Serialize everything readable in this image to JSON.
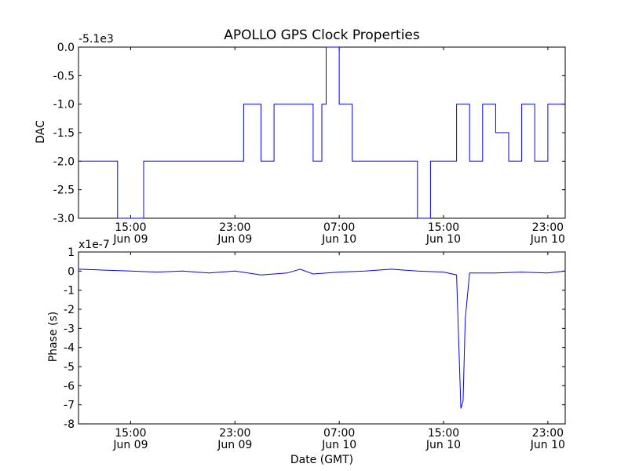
{
  "figure": {
    "title": "APOLLO GPS Clock Properties",
    "xlabel": "Date (GMT)"
  },
  "colors": {
    "line": "#0000ff",
    "axes": "#000000",
    "background": "#ffffff"
  },
  "chart_data": [
    {
      "type": "line",
      "title": "APOLLO GPS Clock Properties",
      "ylabel": "DAC",
      "offset_label": "-5.1e3",
      "y_offset": -5100,
      "ylim": [
        -3.0,
        0.0
      ],
      "yticks": [
        -3.0,
        -2.5,
        -2.0,
        -1.5,
        -1.0,
        -0.5,
        0.0
      ],
      "ytick_labels": [
        "-3.0",
        "-2.5",
        "-2.0",
        "-1.5",
        "-1.0",
        "-0.5",
        "0.0"
      ],
      "xlim": [
        "Jun 09 11:00",
        "Jun 11 00:20"
      ],
      "xticks": [
        {
          "value": "Jun 09 15:00",
          "time": "15:00",
          "date": "Jun 09"
        },
        {
          "value": "Jun 09 23:00",
          "time": "23:00",
          "date": "Jun 09"
        },
        {
          "value": "Jun 10 07:00",
          "time": "07:00",
          "date": "Jun 10"
        },
        {
          "value": "Jun 10 15:00",
          "time": "15:00",
          "date": "Jun 10"
        },
        {
          "value": "Jun 10 23:00",
          "time": "23:00",
          "date": "Jun 10"
        }
      ],
      "series": [
        {
          "x": [
            "Jun 09 11:00",
            "Jun 09 12:30",
            "Jun 09 14:00",
            "Jun 09 16:00",
            "Jun 09 18:00",
            "Jun 09 20:00",
            "Jun 09 22:00",
            "Jun 09 23:40",
            "Jun 10 00:20",
            "Jun 10 01:00",
            "Jun 10 02:00",
            "Jun 10 03:00",
            "Jun 10 04:00",
            "Jun 10 05:00",
            "Jun 10 05:40",
            "Jun 10 06:00",
            "Jun 10 07:00",
            "Jun 10 08:00",
            "Jun 10 09:00",
            "Jun 10 10:00",
            "Jun 10 11:00",
            "Jun 10 12:00",
            "Jun 10 13:00",
            "Jun 10 14:00",
            "Jun 10 15:00",
            "Jun 10 16:00",
            "Jun 10 17:00",
            "Jun 10 18:00",
            "Jun 10 19:00",
            "Jun 10 20:00",
            "Jun 10 21:00",
            "Jun 10 22:00",
            "Jun 10 23:00",
            "Jun 11 00:20"
          ],
          "values": [
            -2.0,
            -2.0,
            -3.0,
            -2.0,
            -2.0,
            -2.0,
            -2.0,
            -1.0,
            -1.0,
            -2.0,
            -1.0,
            -1.0,
            -1.0,
            -2.0,
            -1.0,
            0.0,
            -1.0,
            -2.0,
            -2.0,
            -2.0,
            -2.0,
            -2.0,
            -3.0,
            -2.0,
            -2.0,
            -1.0,
            -2.0,
            -1.0,
            -1.5,
            -2.0,
            -1.0,
            -2.0,
            -1.0,
            -1.0
          ]
        }
      ]
    },
    {
      "type": "line",
      "ylabel": "Phase (s)",
      "offset_label": "x1e-7",
      "y_scale": 1e-07,
      "ylim": [
        -8,
        1
      ],
      "yticks": [
        -8,
        -7,
        -6,
        -5,
        -4,
        -3,
        -2,
        -1,
        0,
        1
      ],
      "ytick_labels": [
        "-8",
        "-7",
        "-6",
        "-5",
        "-4",
        "-3",
        "-2",
        "-1",
        "0",
        "1"
      ],
      "xlim": [
        "Jun 09 11:00",
        "Jun 11 00:20"
      ],
      "xticks": [
        {
          "value": "Jun 09 15:00",
          "time": "15:00",
          "date": "Jun 09"
        },
        {
          "value": "Jun 09 23:00",
          "time": "23:00",
          "date": "Jun 09"
        },
        {
          "value": "Jun 10 07:00",
          "time": "07:00",
          "date": "Jun 10"
        },
        {
          "value": "Jun 10 15:00",
          "time": "15:00",
          "date": "Jun 10"
        },
        {
          "value": "Jun 10 23:00",
          "time": "23:00",
          "date": "Jun 10"
        }
      ],
      "series": [
        {
          "x": [
            "Jun 09 11:00",
            "Jun 09 13:00",
            "Jun 09 15:00",
            "Jun 09 17:00",
            "Jun 09 19:00",
            "Jun 09 21:00",
            "Jun 09 23:00",
            "Jun 10 01:00",
            "Jun 10 03:00",
            "Jun 10 04:00",
            "Jun 10 05:00",
            "Jun 10 07:00",
            "Jun 10 09:00",
            "Jun 10 11:00",
            "Jun 10 13:00",
            "Jun 10 15:00",
            "Jun 10 16:00",
            "Jun 10 16:20",
            "Jun 10 16:30",
            "Jun 10 16:40",
            "Jun 10 17:00",
            "Jun 10 19:00",
            "Jun 10 21:00",
            "Jun 10 23:00",
            "Jun 11 00:20"
          ],
          "values": [
            0.1,
            0.05,
            0.0,
            -0.05,
            0.0,
            -0.1,
            0.0,
            -0.2,
            -0.1,
            0.1,
            -0.15,
            -0.05,
            0.0,
            0.1,
            0.0,
            -0.05,
            -0.2,
            -7.2,
            -6.8,
            -2.5,
            -0.1,
            -0.1,
            -0.05,
            -0.1,
            0.0
          ]
        }
      ]
    }
  ]
}
